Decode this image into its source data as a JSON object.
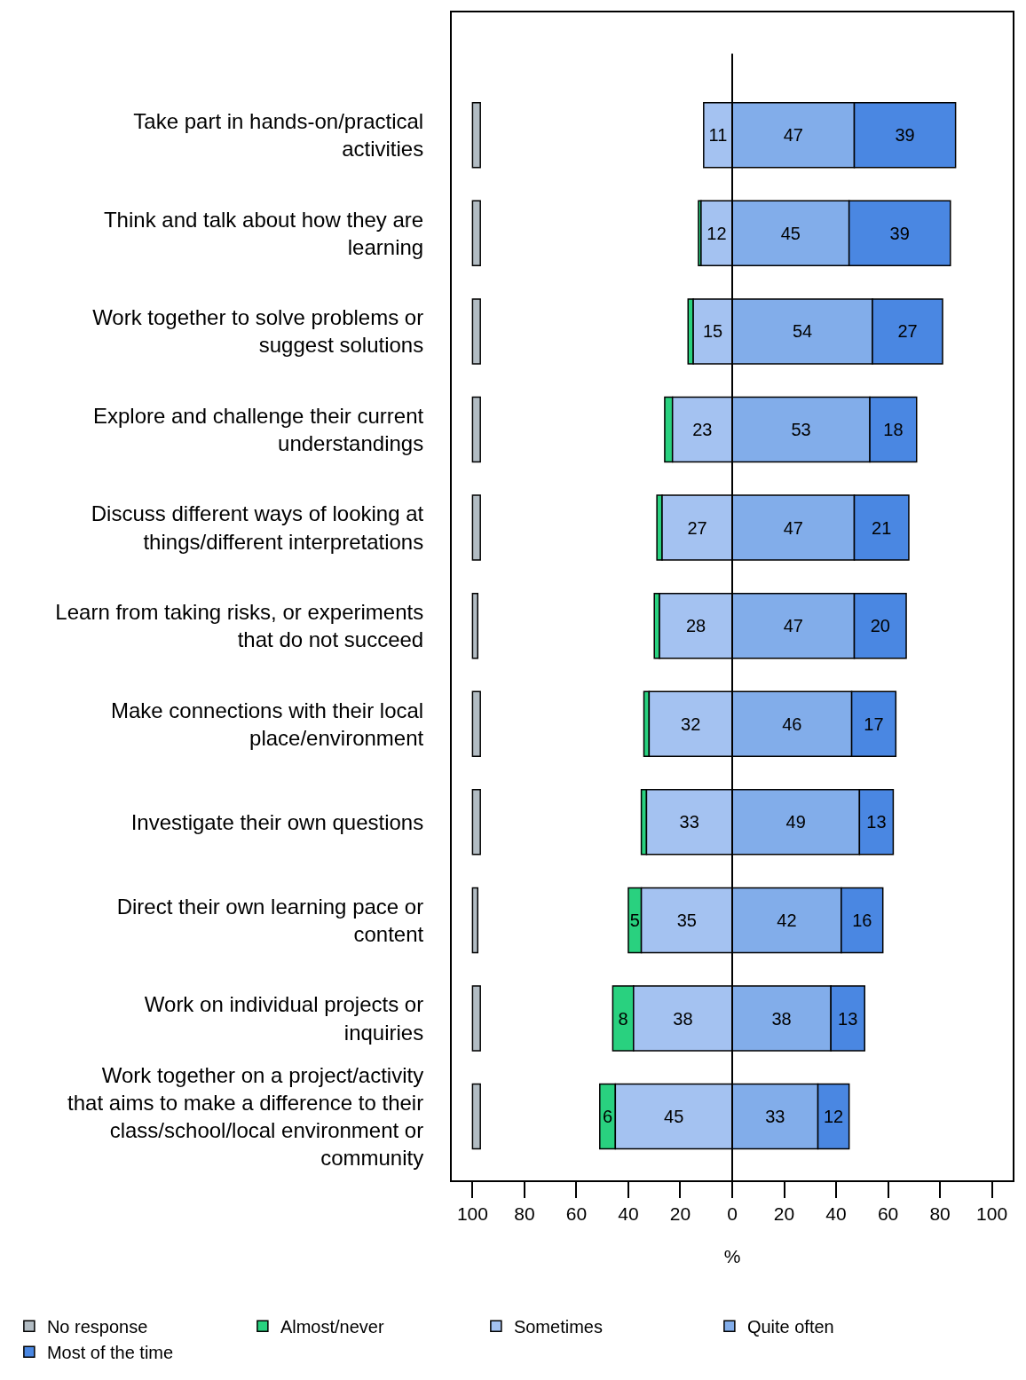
{
  "chart_data": {
    "type": "bar",
    "orientation": "horizontal",
    "categories": [
      "Take part in hands-on/practical activities",
      "Think and talk about how they are learning",
      "Work together to solve problems or suggest solutions",
      "Explore and challenge their current understandings",
      "Discuss different ways of looking at things/different interpretations",
      "Learn from taking risks, or experiments that do not succeed",
      "Make connections with their local place/environment",
      "Investigate their own questions",
      "Direct their own learning pace or content",
      "Work on individual projects or inquiries",
      "Work together on a project/activity that aims to make a difference to their class/school/local environment or community"
    ],
    "series": [
      {
        "name": "No response",
        "color": "#b2bcc3",
        "values": [
          3,
          3,
          3,
          3,
          3,
          2,
          3,
          3,
          2,
          3,
          3
        ],
        "base": [
          -100,
          -100,
          -100,
          -100,
          -100,
          -100,
          -100,
          -100,
          -100,
          -100,
          -100
        ]
      },
      {
        "name": "Almost/never",
        "color": "#29d17f",
        "values": [
          null,
          1,
          2,
          3,
          2,
          2,
          2,
          2,
          5,
          8,
          6
        ],
        "base": [
          null,
          -13,
          -17,
          -26,
          -29,
          -30,
          -34,
          -35,
          -40,
          -46,
          -51
        ],
        "value_labels": [
          null,
          null,
          null,
          null,
          null,
          null,
          null,
          null,
          "5",
          "8",
          "6"
        ]
      },
      {
        "name": "Sometimes",
        "color": "#a4c2f1",
        "values": [
          11,
          12,
          15,
          23,
          27,
          28,
          32,
          33,
          35,
          38,
          45
        ],
        "base": [
          -11,
          -12,
          -15,
          -23,
          -27,
          -28,
          -32,
          -33,
          -35,
          -38,
          -45
        ],
        "value_labels": [
          "11",
          "12",
          "15",
          "23",
          "27",
          "28",
          "32",
          "33",
          "35",
          "38",
          "45"
        ]
      },
      {
        "name": "Quite often",
        "color": "#82adea",
        "values": [
          47,
          45,
          54,
          53,
          47,
          47,
          46,
          49,
          42,
          38,
          33
        ],
        "base": [
          0,
          0,
          0,
          0,
          0,
          0,
          0,
          0,
          0,
          0,
          0
        ],
        "value_labels": [
          "47",
          "45",
          "54",
          "53",
          "47",
          "47",
          "46",
          "49",
          "42",
          "38",
          "33"
        ]
      },
      {
        "name": "Most of the time",
        "color": "#4a87e2",
        "values": [
          39,
          39,
          27,
          18,
          21,
          20,
          17,
          13,
          16,
          13,
          12
        ],
        "base": [
          47,
          45,
          54,
          53,
          47,
          47,
          46,
          49,
          42,
          38,
          33
        ],
        "value_labels": [
          "39",
          "39",
          "27",
          "18",
          "21",
          "20",
          "17",
          "13",
          "16",
          "13",
          "12"
        ]
      }
    ],
    "xlabel": "%",
    "xlim": [
      -108,
      108
    ],
    "xticks": [
      {
        "value": -100,
        "label": "100"
      },
      {
        "value": -80,
        "label": "80"
      },
      {
        "value": -60,
        "label": "60"
      },
      {
        "value": -40,
        "label": "40"
      },
      {
        "value": -20,
        "label": "20"
      },
      0,
      20,
      40,
      60,
      80,
      100
    ],
    "ref_lines": [
      {
        "axis": "x",
        "value": 0,
        "color": "#000000"
      }
    ],
    "legend": "bottom"
  }
}
